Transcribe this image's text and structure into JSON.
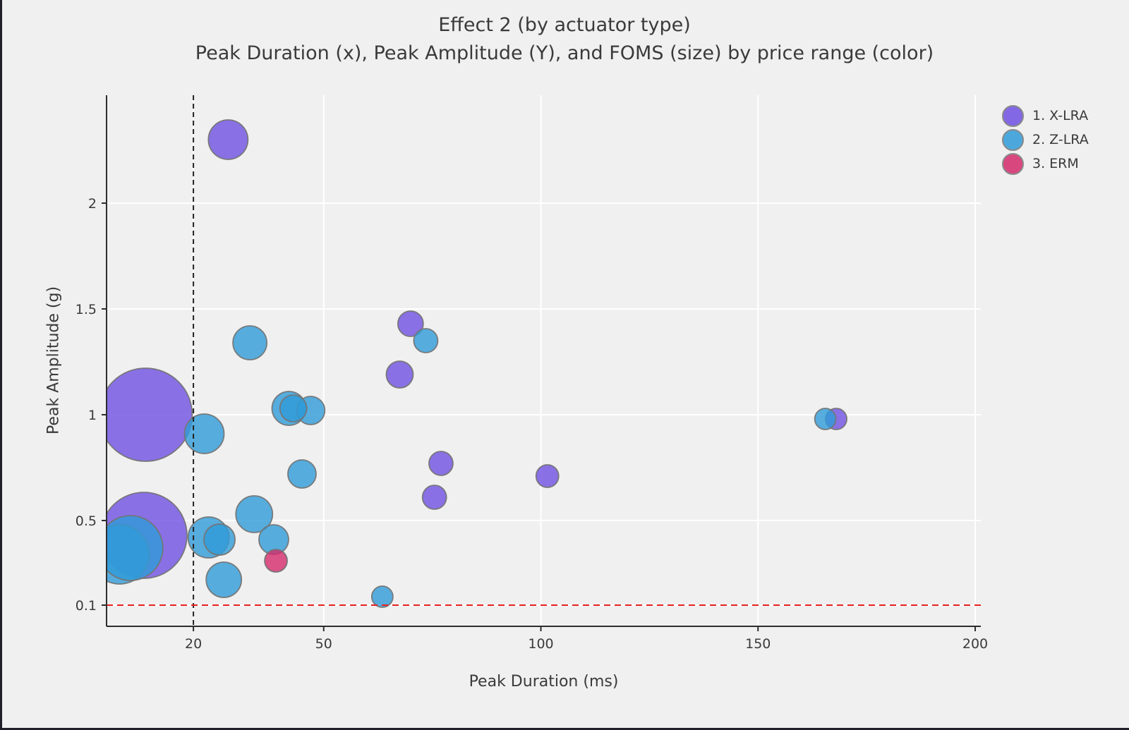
{
  "window": {
    "background": "#f0f0f0",
    "edge_border_color": "#20202a"
  },
  "chart_data": {
    "type": "scatter",
    "subtype": "bubble",
    "title": "Effect 2 (by actuator type)",
    "subtitle": "Peak Duration (x), Peak Amplitude (Y), and FOMS (size) by price range (color)",
    "xlabel": "Peak Duration (ms)",
    "ylabel": "Peak Amplitude (g)",
    "size_label": "FOMS",
    "xaxis": {
      "range": [
        0,
        201.3
      ],
      "tick_values": [
        20,
        50,
        100,
        150,
        200
      ],
      "tick_labels": [
        "20",
        "50",
        "100",
        "150",
        "200"
      ],
      "grid": true
    },
    "yaxis": {
      "range": [
        0,
        2.51
      ],
      "tick_values": [
        0.1,
        0.5,
        1,
        1.5,
        2
      ],
      "tick_labels": [
        "0.1",
        "0.5",
        "1",
        "1.5",
        "2"
      ],
      "grid": true
    },
    "legend_position": "top-right",
    "series": [
      {
        "name": "1. X-LRA",
        "slug": "x-lra",
        "color": "#6f50e2",
        "points": [
          {
            "x": 28,
            "y": 2.3,
            "r": 28
          },
          {
            "x": 9,
            "y": 1.0,
            "r": 66
          },
          {
            "x": 8.6,
            "y": 0.43,
            "r": 61
          },
          {
            "x": 70,
            "y": 1.43,
            "r": 18
          },
          {
            "x": 67.5,
            "y": 1.19,
            "r": 19
          },
          {
            "x": 77,
            "y": 0.77,
            "r": 17
          },
          {
            "x": 75.5,
            "y": 0.61,
            "r": 17
          },
          {
            "x": 101.5,
            "y": 0.71,
            "r": 16
          },
          {
            "x": 168,
            "y": 0.98,
            "r": 15
          }
        ]
      },
      {
        "name": "2. Z-LRA",
        "slug": "z-lra",
        "color": "#2f9bd8",
        "points": [
          {
            "x": 33,
            "y": 1.34,
            "r": 24
          },
          {
            "x": 22.5,
            "y": 0.91,
            "r": 28
          },
          {
            "x": 42,
            "y": 1.03,
            "r": 24
          },
          {
            "x": 47,
            "y": 1.02,
            "r": 20
          },
          {
            "x": 43,
            "y": 1.03,
            "r": 19
          },
          {
            "x": 45,
            "y": 0.72,
            "r": 20
          },
          {
            "x": 73.5,
            "y": 1.35,
            "r": 17
          },
          {
            "x": 3,
            "y": 0.34,
            "r": 42
          },
          {
            "x": 5.5,
            "y": 0.37,
            "r": 46
          },
          {
            "x": 23.5,
            "y": 0.42,
            "r": 29
          },
          {
            "x": 26,
            "y": 0.41,
            "r": 22
          },
          {
            "x": 34,
            "y": 0.53,
            "r": 26
          },
          {
            "x": 38.5,
            "y": 0.41,
            "r": 21
          },
          {
            "x": 27,
            "y": 0.22,
            "r": 25
          },
          {
            "x": 63.5,
            "y": 0.14,
            "r": 15
          },
          {
            "x": 165.5,
            "y": 0.98,
            "r": 15
          }
        ]
      },
      {
        "name": "3. ERM",
        "slug": "erm",
        "color": "#d42a6b",
        "points": [
          {
            "x": 39,
            "y": 0.31,
            "r": 16
          }
        ]
      }
    ],
    "reference_lines": [
      {
        "orientation": "vertical",
        "x": 20,
        "color": "#222222",
        "dash": "dashed"
      },
      {
        "orientation": "horizontal",
        "y": 0.1,
        "color": "#e8221f",
        "dash": "dashed"
      }
    ],
    "style": {
      "marker_opacity": 0.8,
      "marker_stroke": "#757575",
      "grid_color": "#ffffff",
      "axis_color": "#2d2d2d",
      "text_color": "#3a3a3a",
      "plot_bg": "#f0f0f0"
    }
  }
}
